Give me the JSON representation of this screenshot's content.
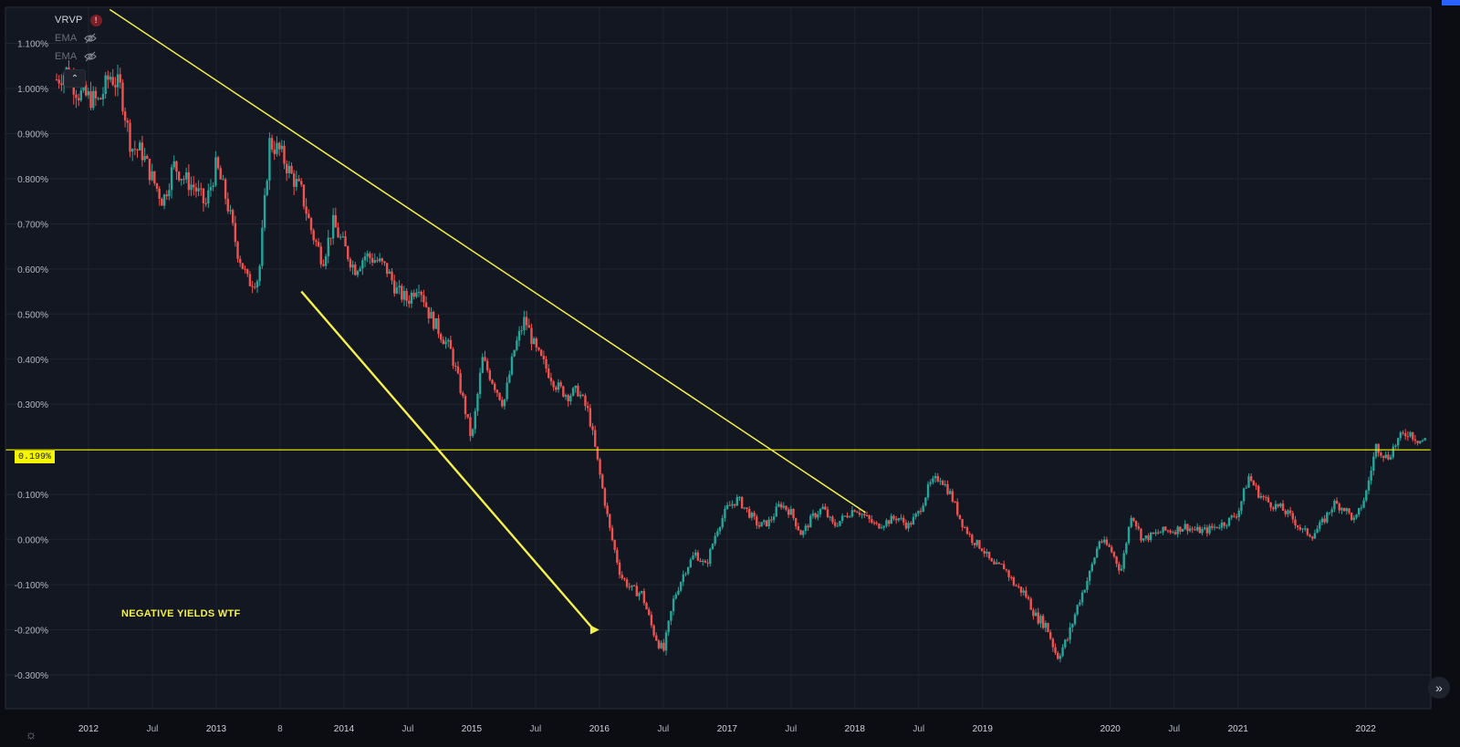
{
  "legend": {
    "indicators": [
      {
        "name": "VRVP",
        "visible": true,
        "warning": "!"
      },
      {
        "name": "EMA",
        "visible": false
      },
      {
        "name": "EMA",
        "visible": false
      }
    ],
    "collapse_icon": "chevron-up-icon"
  },
  "horizontal_line_label": "0.199%",
  "annotation_text": "NEGATIVE YIELDS WTF",
  "colors": {
    "background": "#131722",
    "grid": "#1f2430",
    "up": "#26a69a",
    "down": "#ef5350",
    "drawing": "#f5f14a",
    "hline": "#f5f500",
    "axis_text": "#b2b5be"
  },
  "icons": {
    "settings": "gear-icon",
    "scroll": "double-chevron-right-icon",
    "hidden": "eye-off-icon"
  },
  "chart_data": {
    "type": "candlestick",
    "title": "",
    "y_axis": {
      "ticks": [
        "1.100%",
        "1.000%",
        "0.900%",
        "0.800%",
        "0.700%",
        "0.600%",
        "0.500%",
        "0.400%",
        "0.300%",
        "0.100%",
        "0.000%",
        "-0.100%",
        "-0.200%",
        "-0.300%"
      ],
      "range": [
        -0.33,
        1.16
      ],
      "unit": "%"
    },
    "x_axis": {
      "ticks": [
        "2012",
        "Jul",
        "2013",
        "8",
        "2014",
        "Jul",
        "2015",
        "Jul",
        "2016",
        "Jul",
        "2017",
        "Jul",
        "2018",
        "Jul",
        "2019",
        "2020",
        "Jul",
        "2021",
        "2022"
      ],
      "tick_dates": [
        "2012-01",
        "2012-07",
        "2013-01",
        "2013-07",
        "2014-01",
        "2014-07",
        "2015-01",
        "2015-07",
        "2016-01",
        "2016-07",
        "2017-01",
        "2017-07",
        "2018-01",
        "2018-07",
        "2019-01",
        "2020-01",
        "2020-07",
        "2021-01",
        "2022-01"
      ],
      "range": [
        "2011-10",
        "2022-06"
      ]
    },
    "series": [
      {
        "name": "",
        "kind": "price",
        "points": [
          {
            "x": "2011-10",
            "y": 1.02
          },
          {
            "x": "2011-11",
            "y": 1.04
          },
          {
            "x": "2011-12",
            "y": 0.99
          },
          {
            "x": "2012-01",
            "y": 0.98
          },
          {
            "x": "2012-02",
            "y": 0.97
          },
          {
            "x": "2012-03",
            "y": 1.03
          },
          {
            "x": "2012-04",
            "y": 1.0
          },
          {
            "x": "2012-05",
            "y": 0.87
          },
          {
            "x": "2012-06",
            "y": 0.86
          },
          {
            "x": "2012-07",
            "y": 0.8
          },
          {
            "x": "2012-08",
            "y": 0.75
          },
          {
            "x": "2012-09",
            "y": 0.83
          },
          {
            "x": "2012-10",
            "y": 0.8
          },
          {
            "x": "2012-11",
            "y": 0.78
          },
          {
            "x": "2012-12",
            "y": 0.74
          },
          {
            "x": "2013-01",
            "y": 0.83
          },
          {
            "x": "2013-02",
            "y": 0.75
          },
          {
            "x": "2013-03",
            "y": 0.64
          },
          {
            "x": "2013-04",
            "y": 0.57
          },
          {
            "x": "2013-05",
            "y": 0.58
          },
          {
            "x": "2013-06",
            "y": 0.88
          },
          {
            "x": "2013-07",
            "y": 0.86
          },
          {
            "x": "2013-08",
            "y": 0.81
          },
          {
            "x": "2013-09",
            "y": 0.77
          },
          {
            "x": "2013-10",
            "y": 0.68
          },
          {
            "x": "2013-11",
            "y": 0.62
          },
          {
            "x": "2013-12",
            "y": 0.7
          },
          {
            "x": "2014-01",
            "y": 0.65
          },
          {
            "x": "2014-02",
            "y": 0.6
          },
          {
            "x": "2014-03",
            "y": 0.63
          },
          {
            "x": "2014-04",
            "y": 0.62
          },
          {
            "x": "2014-05",
            "y": 0.6
          },
          {
            "x": "2014-06",
            "y": 0.55
          },
          {
            "x": "2014-07",
            "y": 0.53
          },
          {
            "x": "2014-08",
            "y": 0.57
          },
          {
            "x": "2014-09",
            "y": 0.5
          },
          {
            "x": "2014-10",
            "y": 0.46
          },
          {
            "x": "2014-11",
            "y": 0.42
          },
          {
            "x": "2014-12",
            "y": 0.33
          },
          {
            "x": "2015-01",
            "y": 0.22
          },
          {
            "x": "2015-02",
            "y": 0.4
          },
          {
            "x": "2015-03",
            "y": 0.35
          },
          {
            "x": "2015-04",
            "y": 0.3
          },
          {
            "x": "2015-05",
            "y": 0.42
          },
          {
            "x": "2015-06",
            "y": 0.49
          },
          {
            "x": "2015-07",
            "y": 0.42
          },
          {
            "x": "2015-08",
            "y": 0.38
          },
          {
            "x": "2015-09",
            "y": 0.34
          },
          {
            "x": "2015-10",
            "y": 0.32
          },
          {
            "x": "2015-11",
            "y": 0.33
          },
          {
            "x": "2015-12",
            "y": 0.28
          },
          {
            "x": "2016-01",
            "y": 0.15
          },
          {
            "x": "2016-02",
            "y": 0.02
          },
          {
            "x": "2016-03",
            "y": -0.08
          },
          {
            "x": "2016-04",
            "y": -0.11
          },
          {
            "x": "2016-05",
            "y": -0.12
          },
          {
            "x": "2016-06",
            "y": -0.2
          },
          {
            "x": "2016-07",
            "y": -0.25
          },
          {
            "x": "2016-08",
            "y": -0.13
          },
          {
            "x": "2016-09",
            "y": -0.07
          },
          {
            "x": "2016-10",
            "y": -0.03
          },
          {
            "x": "2016-11",
            "y": -0.06
          },
          {
            "x": "2016-12",
            "y": 0.02
          },
          {
            "x": "2017-01",
            "y": 0.07
          },
          {
            "x": "2017-02",
            "y": 0.09
          },
          {
            "x": "2017-03",
            "y": 0.06
          },
          {
            "x": "2017-04",
            "y": 0.03
          },
          {
            "x": "2017-05",
            "y": 0.04
          },
          {
            "x": "2017-06",
            "y": 0.08
          },
          {
            "x": "2017-07",
            "y": 0.06
          },
          {
            "x": "2017-08",
            "y": 0.01
          },
          {
            "x": "2017-09",
            "y": 0.05
          },
          {
            "x": "2017-10",
            "y": 0.07
          },
          {
            "x": "2017-11",
            "y": 0.03
          },
          {
            "x": "2017-12",
            "y": 0.05
          },
          {
            "x": "2018-01",
            "y": 0.07
          },
          {
            "x": "2018-02",
            "y": 0.05
          },
          {
            "x": "2018-03",
            "y": 0.03
          },
          {
            "x": "2018-04",
            "y": 0.04
          },
          {
            "x": "2018-05",
            "y": 0.05
          },
          {
            "x": "2018-06",
            "y": 0.03
          },
          {
            "x": "2018-07",
            "y": 0.06
          },
          {
            "x": "2018-08",
            "y": 0.12
          },
          {
            "x": "2018-09",
            "y": 0.14
          },
          {
            "x": "2018-10",
            "y": 0.1
          },
          {
            "x": "2018-11",
            "y": 0.04
          },
          {
            "x": "2018-12",
            "y": 0.0
          },
          {
            "x": "2019-01",
            "y": -0.02
          },
          {
            "x": "2019-02",
            "y": -0.06
          },
          {
            "x": "2019-03",
            "y": -0.06
          },
          {
            "x": "2019-04",
            "y": -0.1
          },
          {
            "x": "2019-05",
            "y": -0.12
          },
          {
            "x": "2019-06",
            "y": -0.17
          },
          {
            "x": "2019-07",
            "y": -0.19
          },
          {
            "x": "2019-08",
            "y": -0.26
          },
          {
            "x": "2019-09",
            "y": -0.22
          },
          {
            "x": "2019-10",
            "y": -0.14
          },
          {
            "x": "2019-11",
            "y": -0.08
          },
          {
            "x": "2019-12",
            "y": 0.0
          },
          {
            "x": "2020-01",
            "y": -0.02
          },
          {
            "x": "2020-02",
            "y": -0.07
          },
          {
            "x": "2020-03",
            "y": 0.06
          },
          {
            "x": "2020-04",
            "y": 0.0
          },
          {
            "x": "2020-05",
            "y": 0.01
          },
          {
            "x": "2020-06",
            "y": 0.02
          },
          {
            "x": "2020-07",
            "y": 0.02
          },
          {
            "x": "2020-08",
            "y": 0.03
          },
          {
            "x": "2020-09",
            "y": 0.02
          },
          {
            "x": "2020-10",
            "y": 0.02
          },
          {
            "x": "2020-11",
            "y": 0.03
          },
          {
            "x": "2020-12",
            "y": 0.04
          },
          {
            "x": "2021-01",
            "y": 0.06
          },
          {
            "x": "2021-02",
            "y": 0.14
          },
          {
            "x": "2021-03",
            "y": 0.1
          },
          {
            "x": "2021-04",
            "y": 0.08
          },
          {
            "x": "2021-05",
            "y": 0.07
          },
          {
            "x": "2021-06",
            "y": 0.05
          },
          {
            "x": "2021-07",
            "y": 0.02
          },
          {
            "x": "2021-08",
            "y": 0.01
          },
          {
            "x": "2021-09",
            "y": 0.04
          },
          {
            "x": "2021-10",
            "y": 0.08
          },
          {
            "x": "2021-11",
            "y": 0.07
          },
          {
            "x": "2021-12",
            "y": 0.04
          },
          {
            "x": "2022-01",
            "y": 0.1
          },
          {
            "x": "2022-02",
            "y": 0.21
          },
          {
            "x": "2022-03",
            "y": 0.18
          },
          {
            "x": "2022-04",
            "y": 0.22
          },
          {
            "x": "2022-05",
            "y": 0.24
          },
          {
            "x": "2022-06",
            "y": 0.22
          }
        ]
      }
    ],
    "horizontal_line": 0.199,
    "trendlines": [
      {
        "from": {
          "x": "2012-03",
          "y": 1.175
        },
        "to": {
          "x": "2018-02",
          "y": 0.06
        }
      },
      {
        "from": {
          "x": "2013-09",
          "y": 0.55
        },
        "to": {
          "x": "2016-01",
          "y": -0.2
        },
        "kind": "arrow"
      }
    ],
    "grid": true
  }
}
